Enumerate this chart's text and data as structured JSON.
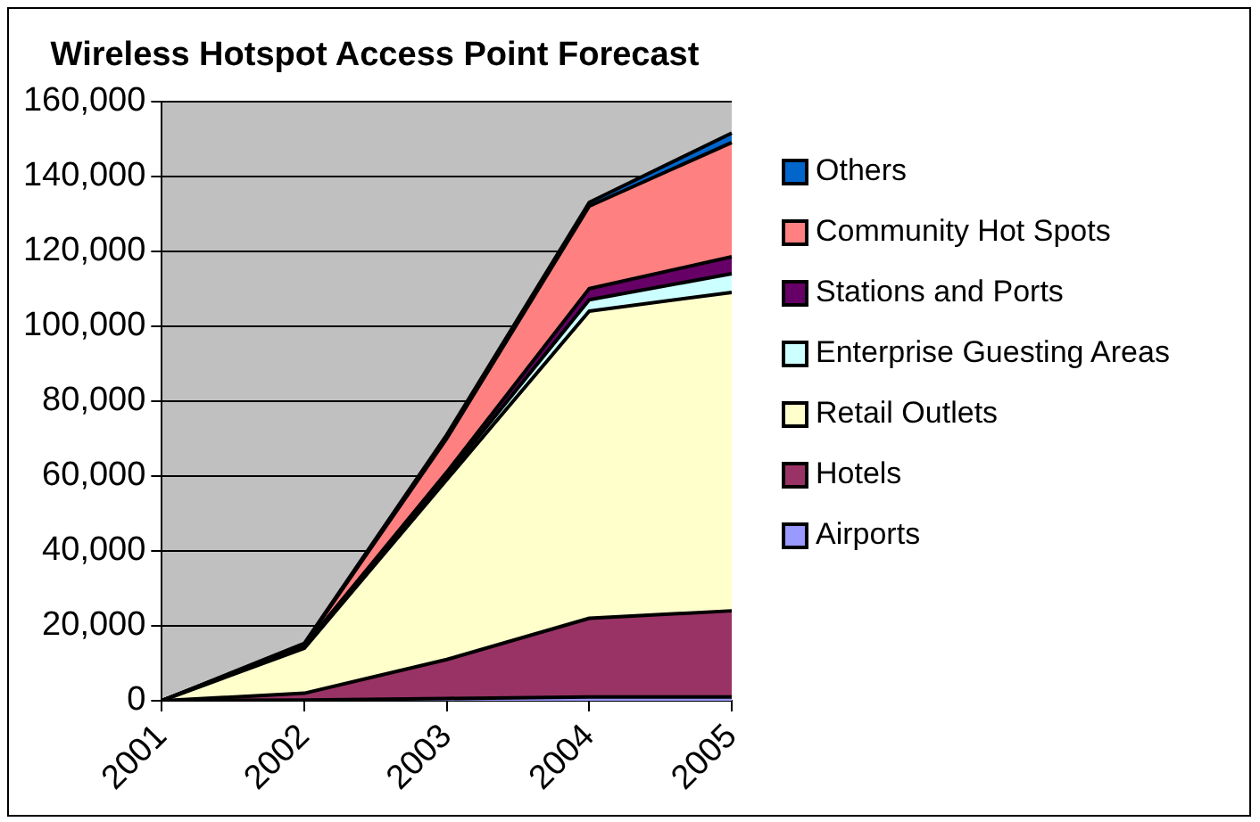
{
  "chart_data": {
    "type": "area",
    "title": "Wireless Hotspot Access Point Forecast",
    "categories": [
      "2001",
      "2002",
      "2003",
      "2004",
      "2005"
    ],
    "stacked": true,
    "ylim": [
      0,
      160000
    ],
    "yticks": [
      0,
      {
        "value": 20000,
        "label": "20,000"
      },
      {
        "value": 40000,
        "label": "40,000"
      },
      {
        "value": 60000,
        "label": "60,000"
      },
      {
        "value": 80000,
        "label": "80,000"
      },
      {
        "value": 100000,
        "label": "100,000"
      },
      {
        "value": 120000,
        "label": "120,000"
      },
      {
        "value": 140000,
        "label": "140,000"
      },
      {
        "value": 160000,
        "label": "160,000"
      }
    ],
    "grid": "y",
    "legend": "right",
    "series": [
      {
        "name": "Airports",
        "color": "#9999ff",
        "values": [
          0,
          200,
          600,
          1000,
          1000
        ]
      },
      {
        "name": "Hotels",
        "color": "#993366",
        "values": [
          0,
          1800,
          10400,
          21000,
          23000
        ]
      },
      {
        "name": "Retail Outlets",
        "color": "#ffffcc",
        "values": [
          0,
          12000,
          48000,
          82000,
          85000
        ]
      },
      {
        "name": "Enterprise Guesting Areas",
        "color": "#ccffff",
        "values": [
          0,
          300,
          1000,
          3000,
          5000
        ]
      },
      {
        "name": "Stations and Ports",
        "color": "#660066",
        "values": [
          0,
          300,
          1000,
          3000,
          4500
        ]
      },
      {
        "name": "Community Hot Spots",
        "color": "#ff8080",
        "values": [
          0,
          500,
          9000,
          22000,
          30500
        ]
      },
      {
        "name": "Others",
        "color": "#0066cc",
        "values": [
          0,
          200,
          1000,
          1000,
          2500
        ]
      }
    ]
  }
}
